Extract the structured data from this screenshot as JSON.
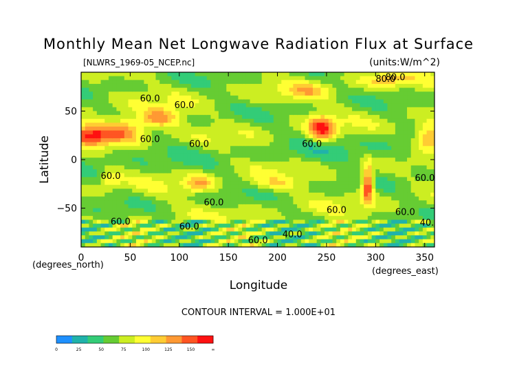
{
  "chart_data": {
    "type": "heatmap",
    "title": "Monthly Mean Net Longwave Radiation Flux at Surface",
    "file_label": "[NLWRS_1969-05_NCEP.nc]",
    "units_label": "(units:W/m^2)",
    "xlabel": "Longitude",
    "ylabel": "Latitude",
    "x_unit_label": "(degrees_east)",
    "y_unit_label": "(degrees_north)",
    "xlim": [
      0,
      360
    ],
    "ylim": [
      -90,
      90
    ],
    "x_ticks": [
      0,
      50,
      100,
      150,
      200,
      250,
      300,
      350
    ],
    "y_ticks": [
      50,
      0,
      -50
    ],
    "contour_interval_text": "CONTOUR INTERVAL = 1.000E+01",
    "contour_labels": [
      "80.0",
      "60.0",
      "60.0",
      "80.0",
      "60.0",
      "60.0",
      "60.0",
      "60.0",
      "60.0",
      "60.0",
      "60.0",
      "60.0",
      "40.0",
      "60.0",
      "60.0",
      "40.0",
      "60.0"
    ],
    "colorbar": {
      "tick_labels": [
        "0",
        "25",
        "50",
        "75",
        "100",
        "125",
        "150",
        "∞"
      ],
      "colors": [
        "#1e90ff",
        "#20b2aa",
        "#33cc77",
        "#66cc33",
        "#ccee22",
        "#ffff33",
        "#ffcc33",
        "#ff9933",
        "#ff5522",
        "#ff1111"
      ]
    }
  }
}
